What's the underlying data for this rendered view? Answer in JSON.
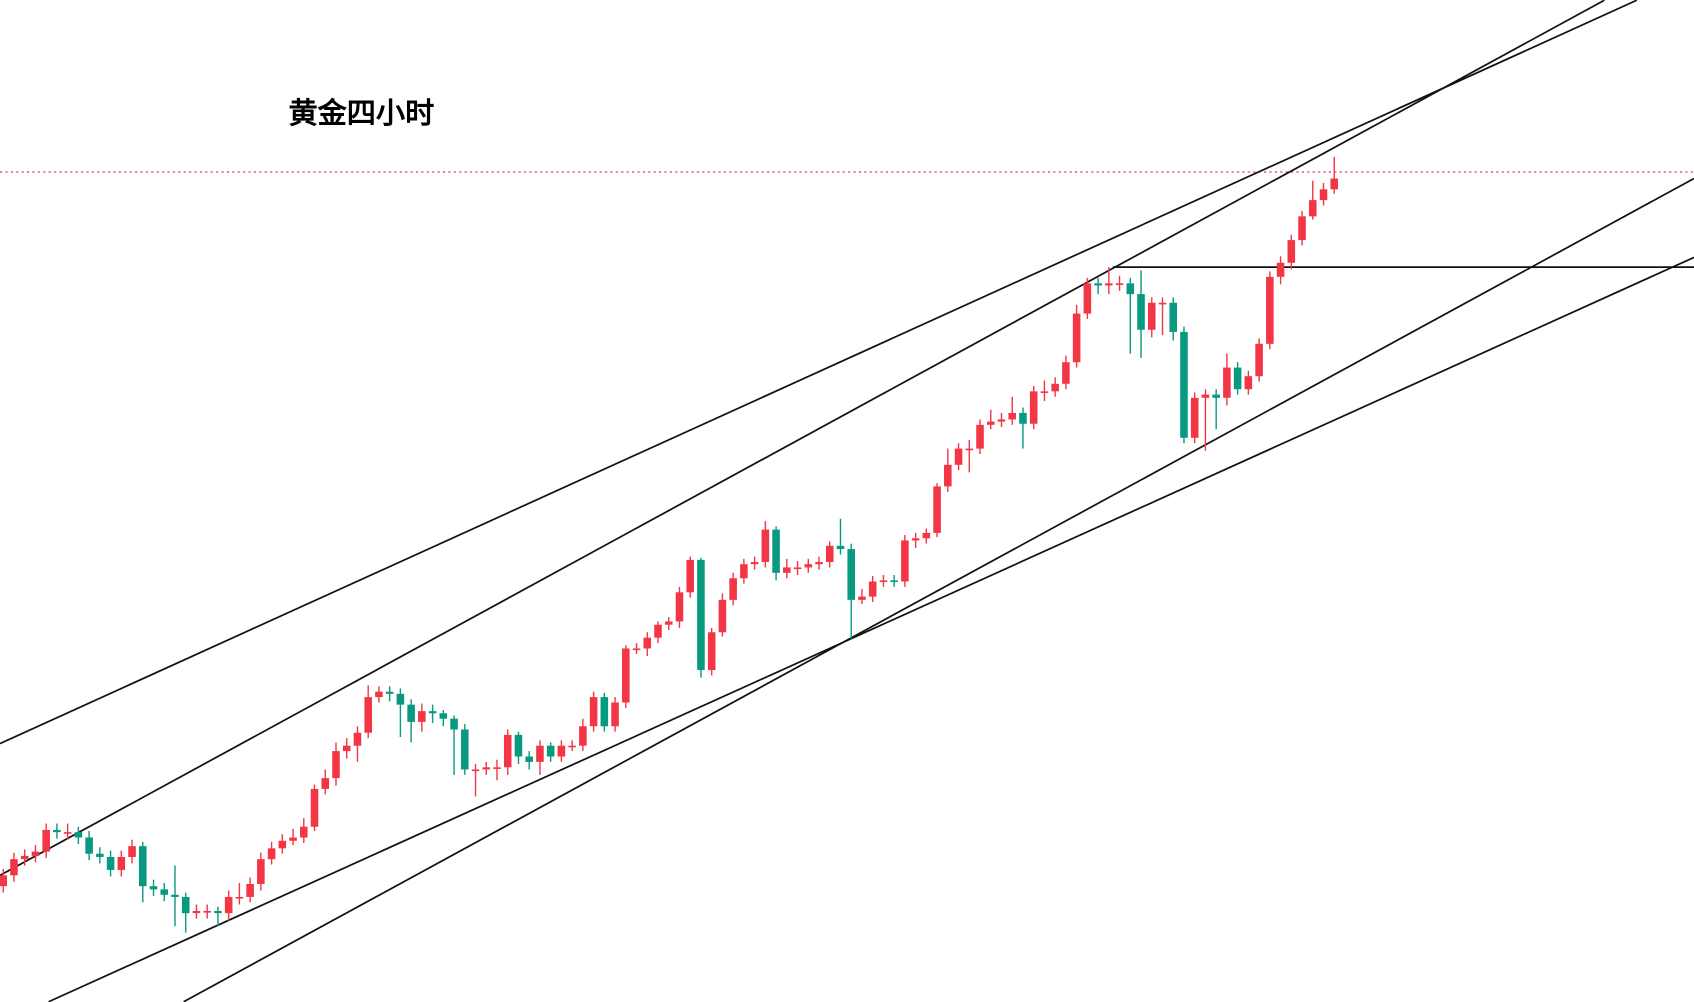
{
  "chart_data": {
    "type": "candlestick",
    "title": "黄金四小时",
    "up_color": "#f23645",
    "down_color": "#089981",
    "ylim": [
      0,
      927
    ],
    "open": [
      107,
      117,
      132,
      135,
      139,
      159,
      157,
      157,
      152,
      137,
      134,
      122,
      134,
      144,
      107,
      104,
      99,
      97,
      82,
      84,
      84,
      82,
      97,
      97,
      109,
      132,
      142,
      149,
      152,
      162,
      197,
      207,
      232,
      237,
      249,
      282,
      287,
      285,
      275,
      259,
      269,
      267,
      262,
      252,
      215,
      215,
      217,
      217,
      247,
      227,
      222,
      237,
      227,
      237,
      237,
      255,
      282,
      255,
      277,
      327,
      327,
      337,
      349,
      352,
      379,
      409,
      307,
      342,
      372,
      392,
      405,
      407,
      437,
      397,
      402,
      402,
      405,
      407,
      422,
      419,
      372,
      375,
      389,
      390,
      389,
      427,
      429,
      434,
      477,
      497,
      512,
      512,
      534,
      537,
      539,
      545,
      535,
      565,
      565,
      572,
      592,
      637,
      665,
      663,
      665,
      665,
      655,
      622,
      647,
      647,
      620,
      522,
      559,
      562,
      559,
      587,
      567,
      579,
      609,
      671,
      684,
      705,
      727,
      742,
      752
    ],
    "high": [
      123,
      138,
      141,
      145,
      165,
      165,
      165,
      162,
      158,
      143,
      140,
      140,
      150,
      148,
      113,
      110,
      126,
      101,
      90,
      90,
      88,
      103,
      110,
      115,
      138,
      148,
      155,
      160,
      170,
      201,
      215,
      240,
      244,
      255,
      293,
      292,
      292,
      290,
      280,
      276,
      275,
      270,
      265,
      257,
      220,
      222,
      224,
      252,
      250,
      232,
      242,
      240,
      242,
      242,
      262,
      287,
      286,
      282,
      330,
      332,
      342,
      352,
      356,
      384,
      412,
      411,
      346,
      378,
      397,
      410,
      412,
      445,
      440,
      410,
      408,
      410,
      412,
      426,
      447,
      424,
      382,
      394,
      395,
      395,
      432,
      434,
      438,
      480,
      512,
      517,
      520,
      539,
      548,
      545,
      560,
      550,
      570,
      575,
      578,
      598,
      645,
      670,
      670,
      680,
      672,
      670,
      677,
      652,
      652,
      652,
      625,
      564,
      567,
      567,
      600,
      592,
      584,
      614,
      676,
      690,
      710,
      732,
      760,
      758,
      782
    ],
    "low": [
      101,
      111,
      126,
      129,
      133,
      151,
      150,
      146,
      131,
      128,
      116,
      116,
      128,
      92,
      98,
      93,
      70,
      64,
      77,
      77,
      70,
      75,
      90,
      92,
      103,
      127,
      137,
      145,
      147,
      158,
      192,
      200,
      225,
      222,
      244,
      277,
      278,
      245,
      240,
      250,
      258,
      255,
      210,
      210,
      190,
      210,
      205,
      210,
      220,
      215,
      210,
      222,
      222,
      232,
      232,
      250,
      250,
      250,
      272,
      322,
      320,
      332,
      344,
      346,
      374,
      300,
      302,
      338,
      367,
      387,
      400,
      402,
      390,
      392,
      395,
      397,
      400,
      402,
      414,
      336,
      368,
      370,
      384,
      384,
      384,
      420,
      424,
      430,
      472,
      492,
      490,
      507,
      530,
      532,
      534,
      512,
      530,
      556,
      560,
      567,
      587,
      632,
      655,
      655,
      658,
      600,
      596,
      615,
      617,
      612,
      517,
      517,
      510,
      530,
      552,
      562,
      562,
      574,
      604,
      664,
      678,
      700,
      724,
      737,
      748
    ],
    "close": [
      117,
      132,
      135,
      139,
      159,
      157,
      157,
      152,
      137,
      134,
      122,
      134,
      144,
      107,
      104,
      99,
      97,
      82,
      84,
      84,
      82,
      97,
      97,
      109,
      132,
      142,
      149,
      152,
      162,
      197,
      207,
      232,
      237,
      249,
      282,
      287,
      285,
      275,
      259,
      269,
      267,
      262,
      252,
      215,
      215,
      217,
      217,
      247,
      227,
      222,
      237,
      227,
      237,
      237,
      255,
      282,
      255,
      277,
      327,
      327,
      337,
      349,
      352,
      379,
      409,
      307,
      342,
      372,
      392,
      405,
      407,
      437,
      397,
      402,
      402,
      405,
      407,
      422,
      419,
      372,
      375,
      389,
      390,
      389,
      427,
      429,
      434,
      477,
      497,
      512,
      512,
      534,
      537,
      539,
      545,
      535,
      565,
      565,
      572,
      592,
      637,
      665,
      663,
      665,
      665,
      655,
      622,
      647,
      647,
      620,
      522,
      559,
      562,
      559,
      587,
      567,
      579,
      609,
      671,
      684,
      705,
      727,
      742,
      752,
      762
    ]
  }
}
